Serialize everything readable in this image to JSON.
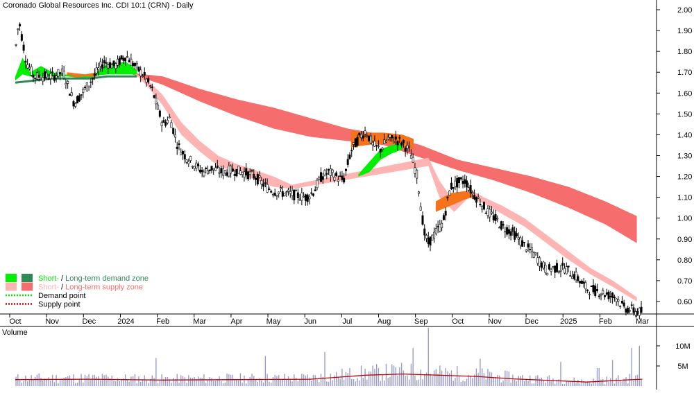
{
  "chart_data": {
    "type": "candlestick",
    "title": "Coronado Global Resources Inc. CDI 10:1 (CRN) - Daily",
    "price_axis": {
      "ticks": [
        2.0,
        1.9,
        1.8,
        1.7,
        1.6,
        1.5,
        1.4,
        1.3,
        1.2,
        1.1,
        1.0,
        0.9,
        0.8,
        0.7,
        0.6
      ],
      "range": [
        0.54,
        2.04
      ]
    },
    "month_labels": [
      "Oct",
      "Nov",
      "Dec",
      "2024",
      "Feb",
      "Mar",
      "Apr",
      "May",
      "Jun",
      "Jul",
      "Aug",
      "Sep",
      "Oct",
      "Nov",
      "Dec",
      "2025",
      "Feb",
      "Mar"
    ],
    "month_positions": [
      0,
      1,
      2,
      3,
      4,
      5,
      6,
      7,
      8,
      9,
      10,
      11,
      12,
      13,
      14,
      15,
      16,
      17
    ],
    "price_path": {
      "x": [
        0,
        0.1,
        0.3,
        0.5,
        0.8,
        1.0,
        1.3,
        1.6,
        1.9,
        2.1,
        2.4,
        2.7,
        3.0,
        3.3,
        3.5,
        3.7,
        4.0,
        4.2,
        4.4,
        4.6,
        4.9,
        5.1,
        5.3,
        5.6,
        5.9,
        6.2,
        6.5,
        6.8,
        7.0,
        7.3,
        7.6,
        7.9,
        8.1,
        8.3,
        8.5,
        8.7,
        8.9,
        9.1,
        9.3,
        9.5,
        9.7,
        9.9,
        10.1,
        10.3,
        10.5,
        10.7,
        10.9,
        11.0,
        11.1,
        11.2,
        11.4,
        11.6,
        11.8,
        12.0,
        12.2,
        12.4,
        12.6,
        12.8,
        13.0,
        13.2,
        13.5,
        13.8,
        14.1,
        14.4,
        14.6,
        14.9,
        15.2,
        15.5,
        15.8,
        16.1,
        16.3,
        16.5,
        16.7,
        16.9,
        17.0
      ],
      "y": [
        1.8,
        1.95,
        1.75,
        1.68,
        1.68,
        1.68,
        1.7,
        1.55,
        1.62,
        1.67,
        1.75,
        1.73,
        1.78,
        1.72,
        1.68,
        1.62,
        1.45,
        1.48,
        1.35,
        1.3,
        1.25,
        1.22,
        1.24,
        1.22,
        1.23,
        1.22,
        1.2,
        1.15,
        1.13,
        1.12,
        1.11,
        1.1,
        1.13,
        1.2,
        1.22,
        1.2,
        1.18,
        1.32,
        1.38,
        1.42,
        1.35,
        1.33,
        1.38,
        1.38,
        1.36,
        1.32,
        1.2,
        1.05,
        0.92,
        0.88,
        0.93,
        0.98,
        1.15,
        1.17,
        1.18,
        1.12,
        1.08,
        1.03,
        1.0,
        0.96,
        0.93,
        0.87,
        0.82,
        0.75,
        0.76,
        0.76,
        0.72,
        0.66,
        0.65,
        0.63,
        0.62,
        0.57,
        0.56,
        0.55,
        0.55
      ]
    },
    "supply_long_upper": {
      "x": [
        3.0,
        4.0,
        5.0,
        6.0,
        7.0,
        8.0,
        9.0,
        10.0,
        11.0,
        12.0,
        13.0,
        14.0,
        15.0,
        16.0,
        16.85
      ],
      "y": [
        1.7,
        1.68,
        1.62,
        1.57,
        1.53,
        1.48,
        1.43,
        1.4,
        1.35,
        1.28,
        1.24,
        1.2,
        1.15,
        1.08,
        1.01
      ]
    },
    "supply_long_lower": {
      "x": [
        3.0,
        4.0,
        5.0,
        6.0,
        7.0,
        8.0,
        9.0,
        10.0,
        11.0,
        12.0,
        13.0,
        14.0,
        15.0,
        16.0,
        16.85
      ],
      "y": [
        1.7,
        1.64,
        1.56,
        1.49,
        1.43,
        1.39,
        1.37,
        1.35,
        1.29,
        1.23,
        1.18,
        1.12,
        1.05,
        0.97,
        0.88
      ]
    },
    "supply_short_upper": {
      "x": [
        3.2,
        3.6,
        4.0,
        4.5,
        5.0,
        5.5,
        6.0,
        7.0,
        7.5,
        11.2,
        11.5,
        11.9,
        12.3,
        12.7,
        13.2,
        13.8,
        14.4,
        15.0,
        15.6,
        16.2,
        16.85
      ],
      "y": [
        1.7,
        1.66,
        1.59,
        1.46,
        1.37,
        1.3,
        1.26,
        1.2,
        1.16,
        1.29,
        1.18,
        1.08,
        1.14,
        1.1,
        1.06,
        1.0,
        0.92,
        0.84,
        0.76,
        0.7,
        0.62
      ]
    },
    "supply_short_lower": {
      "x": [
        3.2,
        3.6,
        4.0,
        4.5,
        5.0,
        5.5,
        6.0,
        7.0,
        7.5,
        11.2,
        11.5,
        11.9,
        12.3,
        12.7,
        13.2,
        13.8,
        14.4,
        15.0,
        15.6,
        16.2,
        16.85
      ],
      "y": [
        1.7,
        1.63,
        1.54,
        1.4,
        1.32,
        1.25,
        1.22,
        1.15,
        1.14,
        1.25,
        1.1,
        1.03,
        1.1,
        1.07,
        1.02,
        0.96,
        0.88,
        0.8,
        0.73,
        0.67,
        0.6
      ]
    },
    "demand_long": {
      "x": [
        0,
        0.5,
        1.0,
        1.5,
        2.0,
        2.5,
        3.0,
        3.3
      ],
      "y": [
        1.65,
        1.66,
        1.67,
        1.67,
        1.67,
        1.68,
        1.68,
        1.68
      ]
    },
    "demand_short_upper": {
      "x": [
        0,
        0.2,
        0.4,
        0.7,
        1.0,
        2.0,
        2.5,
        3.0,
        3.3
      ],
      "y": [
        1.68,
        1.77,
        1.7,
        1.73,
        1.7,
        1.67,
        1.74,
        1.75,
        1.71
      ]
    },
    "demand_short_lower": {
      "x": [
        0,
        0.2,
        0.4,
        0.7,
        1.0,
        2.0,
        2.5,
        3.0,
        3.3
      ],
      "y": [
        1.66,
        1.69,
        1.68,
        1.68,
        1.68,
        1.68,
        1.69,
        1.69,
        1.69
      ]
    },
    "demand_short_mid": {
      "x": [
        9.3,
        9.6,
        9.9,
        10.2,
        10.5
      ],
      "y": [
        1.21,
        1.27,
        1.33,
        1.35,
        1.36
      ]
    },
    "demand_short_mid_lower": {
      "x": [
        9.3,
        9.6,
        9.9,
        10.2,
        10.5
      ],
      "y": [
        1.2,
        1.22,
        1.28,
        1.31,
        1.33
      ]
    },
    "volume": {
      "axis_ticks": [
        "10M",
        "5M"
      ],
      "axis_values": [
        10,
        5
      ],
      "max": 15,
      "spikes": [
        [
          8.4,
          8.5
        ],
        [
          10.8,
          9.5
        ],
        [
          11.2,
          14.5
        ],
        [
          16.2,
          6.5
        ],
        [
          16.7,
          9.5
        ],
        [
          16.9,
          10
        ],
        [
          12.6,
          6.8
        ],
        [
          3.8,
          7
        ],
        [
          6.8,
          7.5
        ],
        [
          14.8,
          6
        ],
        [
          15.8,
          4.5
        ]
      ],
      "average": {
        "x": [
          0,
          2,
          4,
          6,
          8,
          9.5,
          10.5,
          11.5,
          12.5,
          13.5,
          14.5,
          15.5,
          16.5,
          17.0
        ],
        "y": [
          1.6,
          1.7,
          1.5,
          1.6,
          1.7,
          2.7,
          3.0,
          2.7,
          2.4,
          1.8,
          1.4,
          1.0,
          1.5,
          1.7
        ]
      }
    }
  },
  "legend": {
    "items": [
      {
        "label_short": "Short-",
        "separator": " / ",
        "label_long": "Long-term demand zone",
        "color_short": "#00ee00",
        "color_long": "#2e8b57"
      },
      {
        "label_short": "Short-",
        "separator": " / ",
        "label_long": "Long-term supply zone",
        "color_short": "#ffb4b4",
        "color_long": "#f56d6d"
      },
      {
        "label": "Demand point",
        "color": "#00dd00"
      },
      {
        "label": "Supply point",
        "color": "#dd0000"
      }
    ]
  },
  "volume_panel": {
    "label": "Volume"
  },
  "colors": {
    "supply_long": "#f56d6d",
    "supply_short": "#ffb4b4",
    "overlap": "#f4731b",
    "demand_short": "#00ee00",
    "demand_long": "#2e8b57",
    "volume_bars": "#9a9cc8",
    "volume_avg": "#c00000"
  }
}
